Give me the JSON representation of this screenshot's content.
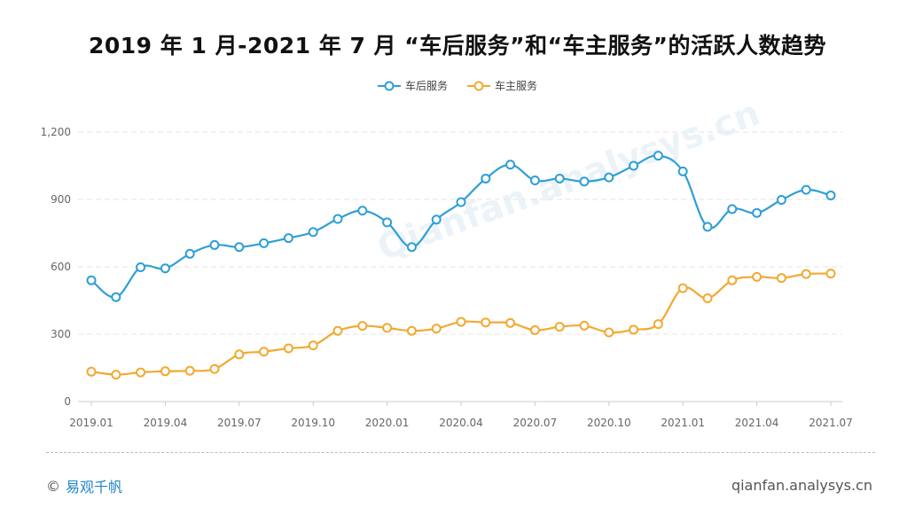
{
  "title": "2019 年 1 月-2021 年 7 月 “车后服务”和“车主服务”的活跃人数趋势",
  "footer": {
    "brand": "易观千帆",
    "site": "qianfan.analysys.cn"
  },
  "watermark": "Qianfan.analysys.cn",
  "colors": {
    "series1": "#2e9fd6",
    "series2": "#f2a930",
    "grid": "#e6e6e6",
    "axis_text": "#666666"
  },
  "chart_data": {
    "type": "line",
    "x": [
      "2019.01",
      "2019.02",
      "2019.03",
      "2019.04",
      "2019.05",
      "2019.06",
      "2019.07",
      "2019.08",
      "2019.09",
      "2019.10",
      "2019.11",
      "2019.12",
      "2020.01",
      "2020.02",
      "2020.03",
      "2020.04",
      "2020.05",
      "2020.06",
      "2020.07",
      "2020.08",
      "2020.09",
      "2020.10",
      "2020.11",
      "2020.12",
      "2021.01",
      "2021.02",
      "2021.03",
      "2021.04",
      "2021.05",
      "2021.06",
      "2021.07"
    ],
    "tick_labels": [
      "2019.01",
      "2019.04",
      "2019.07",
      "2019.10",
      "2020.01",
      "2020.04",
      "2020.07",
      "2020.10",
      "2021.01",
      "2021.04",
      "2021.07"
    ],
    "y_ticks": [
      "0",
      "300",
      "600",
      "900",
      "1,200"
    ],
    "ylim": [
      0,
      1200
    ],
    "legend_placement": "top-center",
    "grid": true,
    "series": [
      {
        "name": "车后服务",
        "values": [
          540,
          465,
          598,
          593,
          658,
          697,
          688,
          705,
          728,
          755,
          813,
          850,
          798,
          688,
          810,
          888,
          993,
          1055,
          985,
          993,
          980,
          998,
          1050,
          1095,
          1025,
          778,
          857,
          840,
          898,
          943,
          918
        ]
      },
      {
        "name": "车主服务",
        "values": [
          133,
          120,
          130,
          135,
          137,
          145,
          210,
          222,
          237,
          250,
          315,
          337,
          328,
          315,
          325,
          355,
          352,
          350,
          318,
          333,
          338,
          308,
          320,
          345,
          505,
          460,
          540,
          555,
          550,
          568,
          570
        ]
      }
    ]
  }
}
